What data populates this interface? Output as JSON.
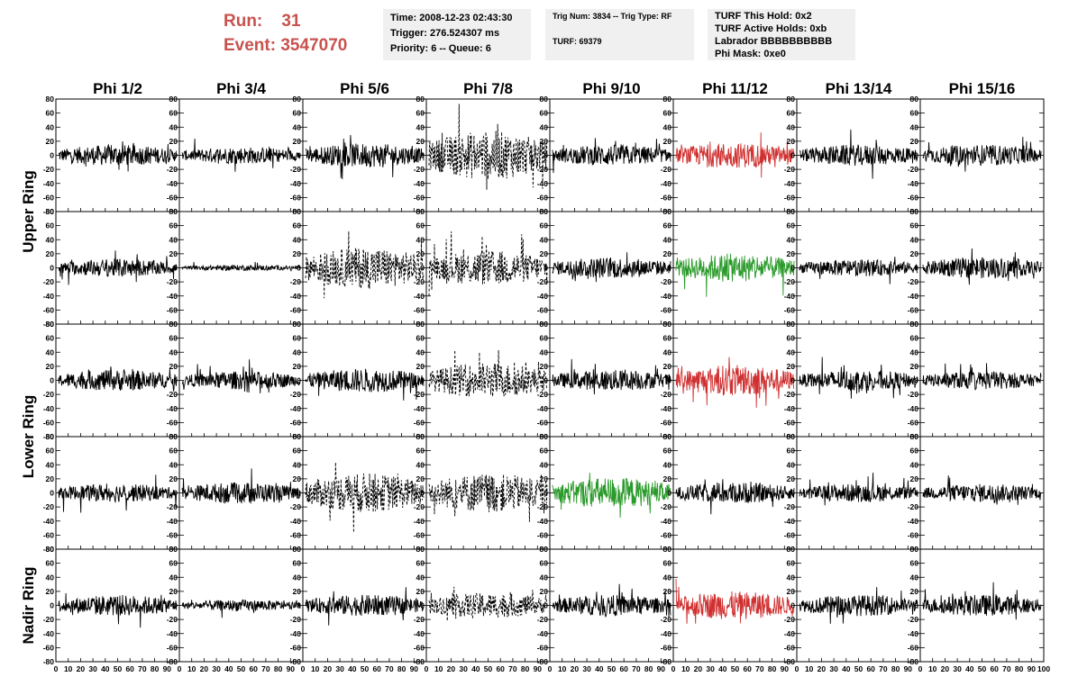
{
  "header": {
    "run_label": "Run:",
    "run_value": "31",
    "event_label": "Event:",
    "event_value": "3547070",
    "info_time": "Time: 2008-12-23 02:43:30",
    "info_trigger": "Trigger: 276.524307 ms",
    "info_priority": "Priority: 6 -- Queue: 6",
    "info_trig_num": "Trig Num: 3834 -- Trig Type: RF",
    "info_turf": "TURF: 69379",
    "info_turf_hold": "TURF This Hold: 0x2",
    "info_turf_active": "TURF Active Holds: 0xb",
    "info_labrador": "Labrador BBBBBBBBBB",
    "info_phi_mask": "Phi Mask: 0xe0"
  },
  "colors": {
    "accent_red": "#c8524e",
    "trace_black": "#000000",
    "trace_red": "#d03030",
    "trace_green": "#2a9a2a"
  },
  "chart_data": {
    "type": "line",
    "columns": [
      "Phi 1/2",
      "Phi 3/4",
      "Phi 5/6",
      "Phi 7/8",
      "Phi 9/10",
      "Phi 11/12",
      "Phi 13/14",
      "Phi 15/16"
    ],
    "rows": [
      "Upper Ring",
      "Upper Ring",
      "Lower Ring",
      "Lower Ring",
      "Nadir Ring"
    ],
    "row_labels": [
      "Upper Ring",
      "Lower Ring",
      "Nadir Ring"
    ],
    "xlim": [
      0,
      100
    ],
    "ylim": [
      -80,
      80
    ],
    "yticks": [
      -80,
      -60,
      -40,
      -20,
      0,
      20,
      40,
      60,
      80
    ],
    "xticks": [
      0,
      10,
      20,
      30,
      40,
      50,
      60,
      70,
      80,
      90,
      100
    ],
    "xtick_labels": [
      "0",
      "10",
      "20",
      "30",
      "40",
      "50",
      "60",
      "70",
      "80",
      "90",
      "100"
    ],
    "ytick_labels": [
      "-80",
      "-60",
      "-40",
      "-20",
      "0",
      "20",
      "40",
      "60",
      "80"
    ],
    "panels": [
      [
        {
          "color": "black",
          "style": "solid",
          "amp": 15
        },
        {
          "color": "black",
          "style": "solid",
          "amp": 12
        },
        {
          "color": "black",
          "style": "solid",
          "amp": 17
        },
        {
          "color": "black",
          "style": "dashed",
          "amp": 35
        },
        {
          "color": "black",
          "style": "solid",
          "amp": 15
        },
        {
          "color": "red",
          "style": "solid",
          "amp": 18
        },
        {
          "color": "black",
          "style": "solid",
          "amp": 15
        },
        {
          "color": "black",
          "style": "solid",
          "amp": 15
        }
      ],
      [
        {
          "color": "black",
          "style": "solid",
          "amp": 13
        },
        {
          "color": "black",
          "style": "solid",
          "amp": 4
        },
        {
          "color": "black",
          "style": "dashed",
          "amp": 30
        },
        {
          "color": "black",
          "style": "dashed",
          "amp": 25
        },
        {
          "color": "black",
          "style": "solid",
          "amp": 15
        },
        {
          "color": "green",
          "style": "solid",
          "amp": 20
        },
        {
          "color": "black",
          "style": "solid",
          "amp": 12
        },
        {
          "color": "black",
          "style": "solid",
          "amp": 15
        }
      ],
      [
        {
          "color": "black",
          "style": "solid",
          "amp": 15
        },
        {
          "color": "black",
          "style": "solid",
          "amp": 13
        },
        {
          "color": "black",
          "style": "solid",
          "amp": 17
        },
        {
          "color": "black",
          "style": "dashed",
          "amp": 25
        },
        {
          "color": "black",
          "style": "solid",
          "amp": 15
        },
        {
          "color": "red",
          "style": "solid",
          "amp": 22
        },
        {
          "color": "black",
          "style": "solid",
          "amp": 15
        },
        {
          "color": "black",
          "style": "solid",
          "amp": 13
        }
      ],
      [
        {
          "color": "black",
          "style": "solid",
          "amp": 13
        },
        {
          "color": "black",
          "style": "solid",
          "amp": 15
        },
        {
          "color": "black",
          "style": "dashed",
          "amp": 28
        },
        {
          "color": "black",
          "style": "dashed",
          "amp": 28
        },
        {
          "color": "green",
          "style": "solid",
          "amp": 22
        },
        {
          "color": "black",
          "style": "solid",
          "amp": 15
        },
        {
          "color": "black",
          "style": "solid",
          "amp": 13
        },
        {
          "color": "black",
          "style": "solid",
          "amp": 13
        }
      ],
      [
        {
          "color": "black",
          "style": "solid",
          "amp": 15
        },
        {
          "color": "black",
          "style": "solid",
          "amp": 8
        },
        {
          "color": "black",
          "style": "solid",
          "amp": 15
        },
        {
          "color": "black",
          "style": "dashed",
          "amp": 18
        },
        {
          "color": "black",
          "style": "solid",
          "amp": 15
        },
        {
          "color": "red",
          "style": "solid",
          "amp": 20
        },
        {
          "color": "black",
          "style": "solid",
          "amp": 15
        },
        {
          "color": "black",
          "style": "solid",
          "amp": 15
        }
      ]
    ]
  }
}
